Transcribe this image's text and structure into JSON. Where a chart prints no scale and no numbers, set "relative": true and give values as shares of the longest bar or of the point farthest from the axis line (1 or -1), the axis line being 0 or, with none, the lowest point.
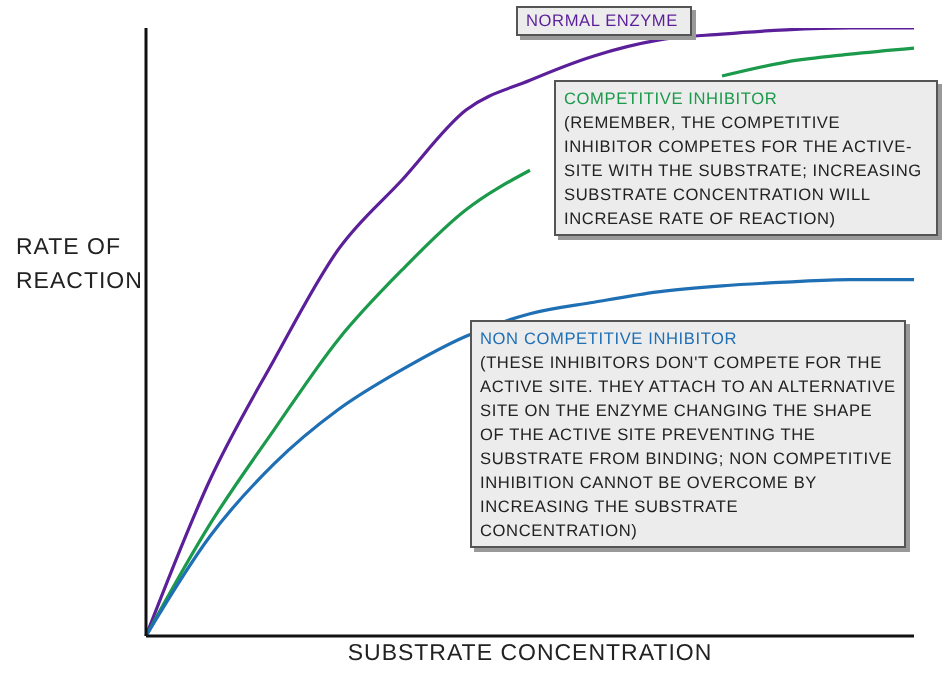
{
  "chart_data": {
    "type": "line",
    "relative": true,
    "xlabel": "SUBSTRATE CONCENTRATION",
    "ylabel": "RATE OF REACTION",
    "categories": [
      null,
      null,
      null,
      null,
      null,
      null,
      null,
      null,
      null,
      null,
      null,
      null,
      null
    ],
    "series": [
      {
        "name": "NORMAL ENZYME",
        "color": "#5b1f9a",
        "values": [
          0,
          0.257,
          0.454,
          0.635,
          0.75,
          0.865,
          0.914,
          0.954,
          0.98,
          0.99,
          0.997,
          1,
          1
        ]
      },
      {
        "name": "COMPETITIVE INHIBITOR",
        "color": "#1a9a4a",
        "values": [
          0,
          0.184,
          0.339,
          0.487,
          0.602,
          0.701,
          0.766,
          null,
          null,
          0.921,
          0.944,
          0.957,
          0.967
        ]
      },
      {
        "name": "NON COMPETITIVE INHIBITOR",
        "color": "#1f6fb5",
        "values": [
          0,
          0.164,
          0.283,
          0.372,
          0.438,
          0.493,
          0.53,
          0.549,
          0.566,
          0.576,
          0.582,
          0.586,
          0.586
        ]
      }
    ],
    "annotations": [
      "(REMEMBER, THE COMPETITIVE INHIBITOR COMPETES FOR THE ACTIVE-SITE WITH THE SUBSTRATE; INCREASING SUBSTRATE CONCENTRATION WILL INCREASE RATE OF REACTION)",
      "(THESE INHIBITORS DON'T COMPETE FOR THE ACTIVE SITE. THEY ATTACH TO AN ALTERNATIVE SITE ON THE ENZYME CHANGING THE SHAPE OF THE ACTIVE SITE PREVENTING THE SUBSTRATE FROM BINDING; NON COMPETITIVE INHIBITION CANNOT BE OVERCOME BY INCREASING THE SUBSTRATE CONCENTRATION)"
    ],
    "marker": "none",
    "line_style": "solid",
    "grid": false
  }
}
